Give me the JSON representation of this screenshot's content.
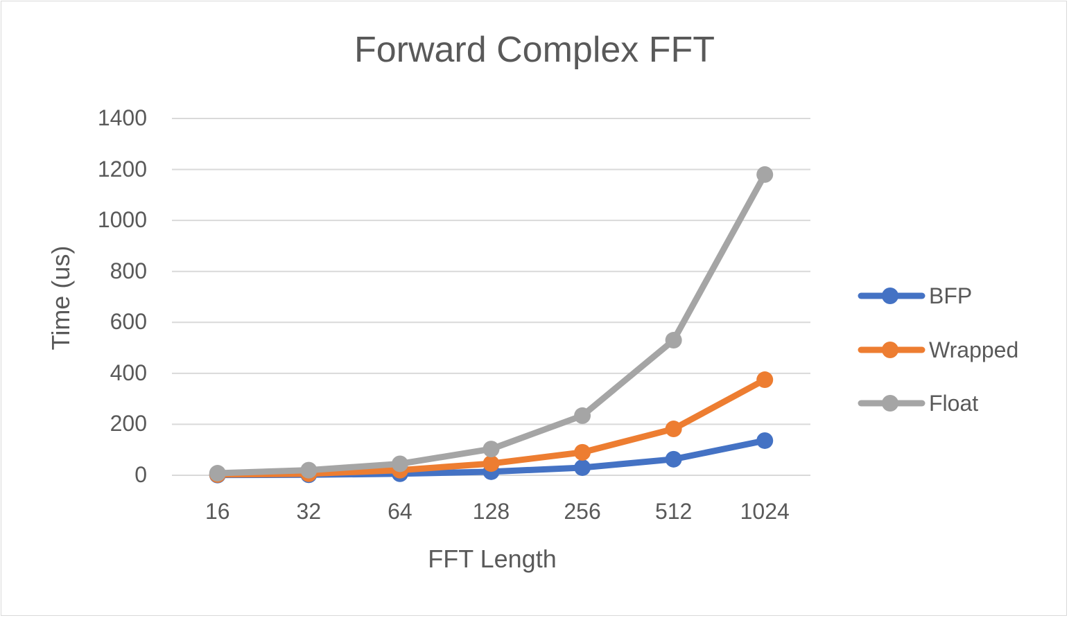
{
  "chart_data": {
    "type": "line",
    "title": "Forward Complex FFT",
    "xlabel": "FFT Length",
    "ylabel": "Time (us)",
    "categories": [
      "16",
      "32",
      "64",
      "128",
      "256",
      "512",
      "1024"
    ],
    "ylim": [
      0,
      1400
    ],
    "yticks": [
      "0",
      "200",
      "400",
      "600",
      "800",
      "1000",
      "1200",
      "1400"
    ],
    "grid": true,
    "legend_position": "right",
    "series": [
      {
        "name": "BFP",
        "color": "#4472c4",
        "values": [
          1,
          2,
          6,
          14,
          30,
          63,
          136
        ]
      },
      {
        "name": "Wrapped",
        "color": "#ed7d31",
        "values": [
          3,
          6,
          20,
          46,
          90,
          182,
          375
        ]
      },
      {
        "name": "Float",
        "color": "#a5a5a5",
        "values": [
          8,
          20,
          45,
          103,
          234,
          530,
          1180
        ]
      }
    ]
  }
}
